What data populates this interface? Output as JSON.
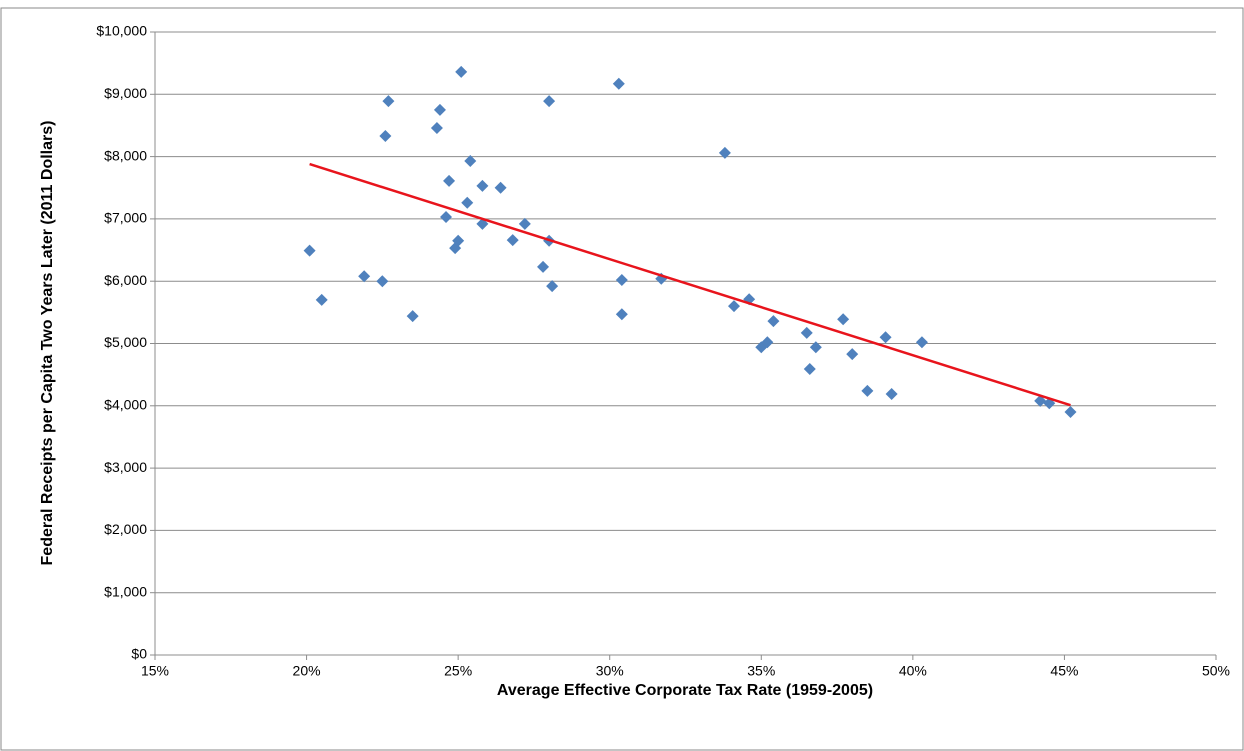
{
  "chart_data": {
    "type": "scatter",
    "x_label": "Average Effective Corporate Tax Rate (1959-2005)",
    "y_label": "Federal Receipts per Capita Two Years Later (2011 Dollars)",
    "xlim": [
      15,
      50
    ],
    "xticks": [
      {
        "value": 15,
        "label": "15%"
      },
      {
        "value": 20,
        "label": "20%"
      },
      {
        "value": 25,
        "label": "25%"
      },
      {
        "value": 30,
        "label": "30%"
      },
      {
        "value": 35,
        "label": "35%"
      },
      {
        "value": 40,
        "label": "40%"
      },
      {
        "value": 45,
        "label": "45%"
      },
      {
        "value": 50,
        "label": "50%"
      }
    ],
    "ylim": [
      0,
      10000
    ],
    "yticks": [
      {
        "value": 0,
        "label": "$0"
      },
      {
        "value": 1000,
        "label": "$1,000"
      },
      {
        "value": 2000,
        "label": "$2,000"
      },
      {
        "value": 3000,
        "label": "$3,000"
      },
      {
        "value": 4000,
        "label": "$4,000"
      },
      {
        "value": 5000,
        "label": "$5,000"
      },
      {
        "value": 6000,
        "label": "$6,000"
      },
      {
        "value": 7000,
        "label": "$7,000"
      },
      {
        "value": 8000,
        "label": "$8,000"
      },
      {
        "value": 9000,
        "label": "$9,000"
      },
      {
        "value": 10000,
        "label": "$10,000"
      }
    ],
    "grid": true,
    "series": [
      {
        "color": "#4f81bd",
        "x": [
          20.1,
          20.5,
          21.9,
          22.5,
          22.6,
          22.7,
          23.5,
          24.3,
          24.4,
          24.7,
          24.6,
          24.9,
          25.0,
          25.1,
          25.3,
          25.4,
          25.8,
          25.8,
          26.4,
          26.8,
          27.2,
          27.8,
          28.0,
          28.0,
          28.1,
          30.3,
          30.4,
          30.4,
          31.7,
          33.8,
          34.1,
          34.6,
          35.0,
          35.2,
          35.4,
          36.5,
          36.6,
          36.8,
          37.7,
          38.0,
          38.5,
          39.1,
          39.3,
          40.3,
          44.2,
          44.5,
          45.2
        ],
        "values": [
          6490,
          5700,
          6080,
          6000,
          8330,
          8890,
          5440,
          8460,
          8750,
          7610,
          7030,
          6530,
          6650,
          9360,
          7260,
          7930,
          7530,
          6920,
          7500,
          6660,
          6920,
          6230,
          6650,
          8890,
          5920,
          9170,
          6020,
          5470,
          6040,
          8060,
          5600,
          5710,
          4940,
          5020,
          5360,
          5170,
          4590,
          4940,
          5390,
          4830,
          4240,
          5100,
          4190,
          5020,
          4080,
          4040,
          3900
        ]
      }
    ],
    "trendline": {
      "color": "#e8141c",
      "x": [
        20.1,
        45.2
      ],
      "values": [
        7880,
        4010
      ]
    }
  }
}
